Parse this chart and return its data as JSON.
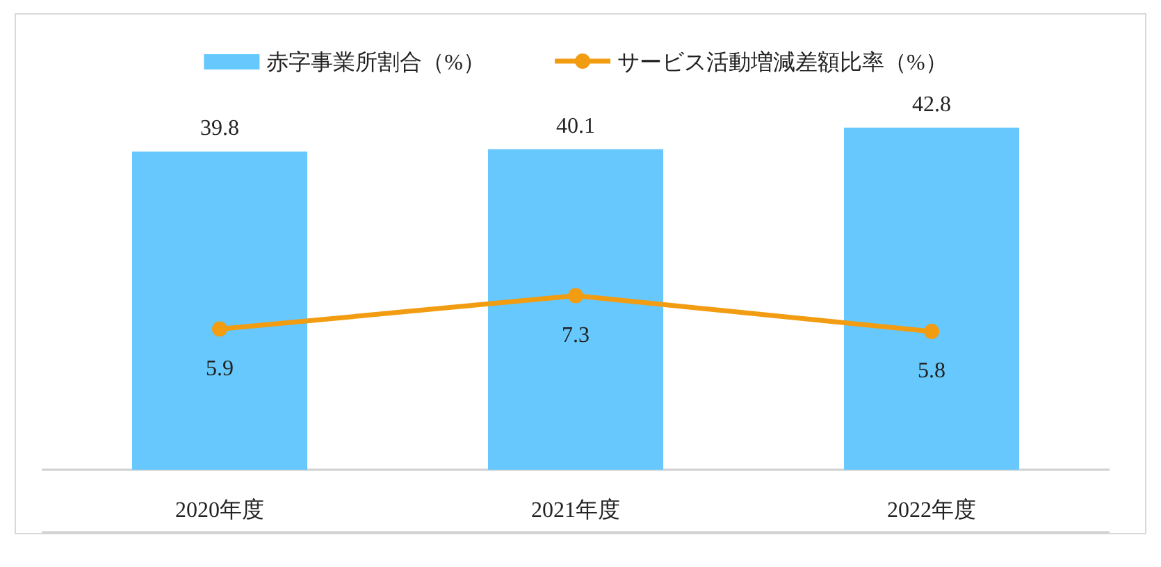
{
  "chart_data": {
    "type": "bar",
    "categories": [
      "2020年度",
      "2021年度",
      "2022年度"
    ],
    "series": [
      {
        "name": "赤字事業所割合（%）",
        "color": "#66c8fc",
        "values": [
          39.8,
          40.1,
          42.8
        ]
      },
      {
        "name": "サービス活動増減差額比率（%）",
        "type": "line",
        "axis": "y2",
        "color": "#f29c12",
        "values": [
          5.9,
          7.3,
          5.8
        ]
      }
    ],
    "data_labels": true,
    "legend": "top",
    "marker": "circle",
    "line_style": "solid",
    "tick_labels": "x"
  }
}
